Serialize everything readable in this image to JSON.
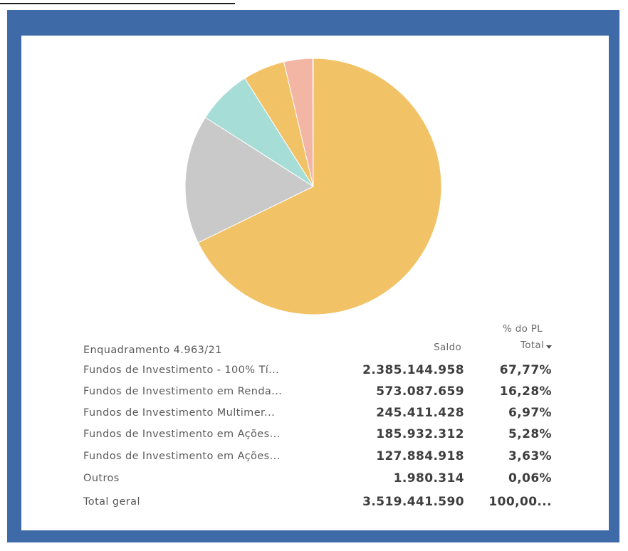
{
  "chart_data": {
    "type": "pie",
    "values": [
      67.77,
      16.28,
      6.97,
      5.28,
      3.63,
      0.06
    ],
    "colors": [
      "#f2c266",
      "#c9c9c9",
      "#a6ddd6",
      "#f2c266",
      "#f3b6a4",
      "#e07a5f"
    ]
  },
  "table": {
    "header": {
      "name": "Enquadramento 4.963/21",
      "saldo": "Saldo",
      "pct": [
        "% do PL",
        "Total"
      ]
    },
    "rows": [
      [
        "Fundos de Investimento - 100% Tí...",
        "2.385.144.958",
        "67,77%"
      ],
      [
        "Fundos de Investimento em Renda...",
        "573.087.659",
        "16,28%"
      ],
      [
        "Fundos de Investimento Multimer...",
        "245.411.428",
        "6,97%"
      ],
      [
        "Fundos de Investimento em Ações...",
        "185.932.312",
        "5,28%"
      ],
      [
        "Fundos de Investimento em Ações...",
        "127.884.918",
        "3,63%"
      ],
      [
        "Outros",
        "1.980.314",
        "0,06%"
      ],
      [
        "Total geral",
        "3.519.441.590",
        "100,00..."
      ]
    ]
  }
}
